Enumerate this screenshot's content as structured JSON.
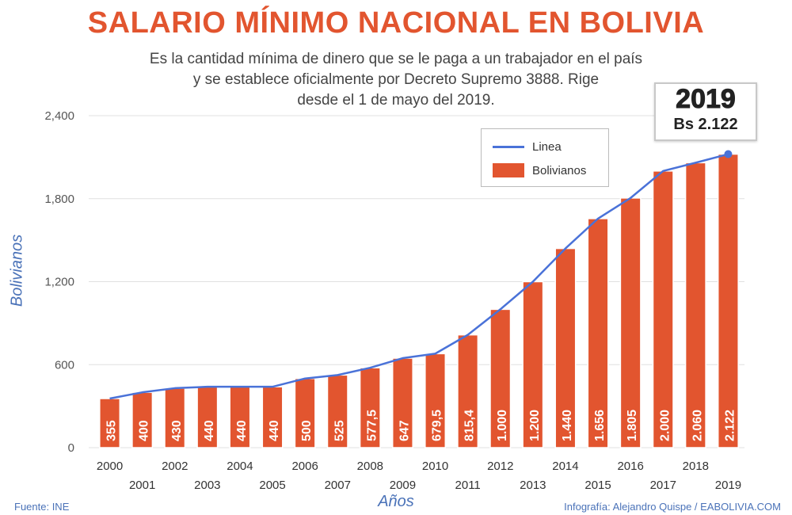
{
  "header": {
    "title": "SALARIO MÍNIMO NACIONAL EN BOLIVIA",
    "subtitle_lines": [
      "Es la cantidad mínima de dinero que se le paga a un trabajador en el país",
      "y se establece oficialmente por Decreto Supremo 3888. Rige",
      "desde el 1 de mayo del 2019."
    ]
  },
  "badge": {
    "year": "2019",
    "amount": "Bs 2.122"
  },
  "footer": {
    "source": "Fuente: INE",
    "credit": "Infografía: Alejandro Quispe / EABOLIVIA.COM"
  },
  "chart_data": {
    "type": "bar",
    "xlabel": "Años",
    "ylabel": "Bolivianos",
    "ylim": [
      0,
      2400
    ],
    "yticks": [
      0,
      600,
      1200,
      1800,
      2400
    ],
    "ytick_labels": [
      "0",
      "600",
      "1,200",
      "1,800",
      "2,400"
    ],
    "grid": true,
    "legend_position": "top-right",
    "categories": [
      "2000",
      "2001",
      "2002",
      "2003",
      "2004",
      "2005",
      "2006",
      "2007",
      "2008",
      "2009",
      "2010",
      "2011",
      "2012",
      "2013",
      "2014",
      "2015",
      "2016",
      "2017",
      "2018",
      "2019"
    ],
    "series": [
      {
        "name": "Linea",
        "type": "line",
        "values": [
          355,
          400,
          430,
          440,
          440,
          440,
          500,
          525,
          577.5,
          647,
          679.5,
          815.4,
          1000,
          1200,
          1440,
          1656,
          1805,
          2000,
          2060,
          2122
        ]
      },
      {
        "name": "Bolivianos",
        "type": "bar",
        "values": [
          355,
          400,
          430,
          440,
          440,
          440,
          500,
          525,
          577.5,
          647,
          679.5,
          815.4,
          1000,
          1200,
          1440,
          1656,
          1805,
          2000,
          2060,
          2122
        ]
      }
    ],
    "data_labels": [
      "355",
      "400",
      "430",
      "440",
      "440",
      "440",
      "500",
      "525",
      "577,5",
      "647",
      "679,5",
      "815,4",
      "1.000",
      "1.200",
      "1.440",
      "1.656",
      "1.805",
      "2.000",
      "2.060",
      "2.122"
    ],
    "colors": {
      "bar": "#e2552f",
      "bar_label": "#ffffff",
      "line": "#4a72d8",
      "axis_text": "#555555",
      "grid": "#e0e0e0"
    }
  }
}
